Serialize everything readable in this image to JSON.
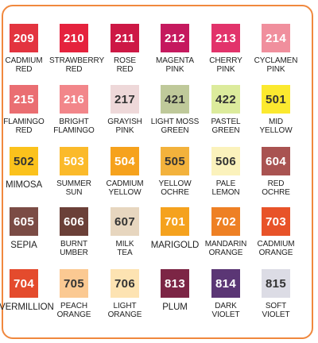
{
  "rows": [
    [
      {
        "code": "209",
        "name": "CADMIUM\nRED",
        "color": "#e3343f",
        "text": "#ffffff"
      },
      {
        "code": "210",
        "name": "STRAWBERRY\nRED",
        "color": "#e5223d",
        "text": "#ffffff"
      },
      {
        "code": "211",
        "name": "ROSE\nRED",
        "color": "#cd1845",
        "text": "#ffffff"
      },
      {
        "code": "212",
        "name": "MAGENTA\nPINK",
        "color": "#c5195e",
        "text": "#ffffff"
      },
      {
        "code": "213",
        "name": "CHERRY\nPINK",
        "color": "#e2336b",
        "text": "#ffffff"
      },
      {
        "code": "214",
        "name": "CYCLAMEN\nPINK",
        "color": "#f08f9d",
        "text": "#ffffff"
      }
    ],
    [
      {
        "code": "215",
        "name": "FLAMINGO\nRED",
        "color": "#ea6e72",
        "text": "#ffffff"
      },
      {
        "code": "216",
        "name": "BRIGHT\nFLAMINGO",
        "color": "#f2868a",
        "text": "#ffffff"
      },
      {
        "code": "217",
        "name": "GRAYISH\nPINK",
        "color": "#eed8d9",
        "text": "#333333"
      },
      {
        "code": "421",
        "name": "LIGHT MOSS\nGREEN",
        "color": "#bfc99a",
        "text": "#333333"
      },
      {
        "code": "422",
        "name": "PASTEL\nGREEN",
        "color": "#dceb9c",
        "text": "#333333"
      },
      {
        "code": "501",
        "name": "MID\nYELLOW",
        "color": "#fbe92f",
        "text": "#333333"
      }
    ],
    [
      {
        "code": "502",
        "name": "MIMOSA",
        "color": "#fbc21c",
        "text": "#333333"
      },
      {
        "code": "503",
        "name": "SUMMER\nSUN",
        "color": "#fbba2a",
        "text": "#ffffff"
      },
      {
        "code": "504",
        "name": "CADMIUM\nYELLOW",
        "color": "#f6a21d",
        "text": "#ffffff"
      },
      {
        "code": "505",
        "name": "YELLOW\nOCHRE",
        "color": "#f3b23c",
        "text": "#333333"
      },
      {
        "code": "506",
        "name": "PALE\nLEMON",
        "color": "#fbf2bc",
        "text": "#333333"
      },
      {
        "code": "604",
        "name": "RED\nOCHRE",
        "color": "#a95351",
        "text": "#ffffff"
      }
    ],
    [
      {
        "code": "605",
        "name": "SEPIA",
        "color": "#7b4c45",
        "text": "#ffffff"
      },
      {
        "code": "606",
        "name": "BURNT\nUMBER",
        "color": "#6b4038",
        "text": "#ffffff"
      },
      {
        "code": "607",
        "name": "MILK\nTEA",
        "color": "#e7d6bf",
        "text": "#333333"
      },
      {
        "code": "701",
        "name": "MARIGOLD",
        "color": "#f5a21e",
        "text": "#ffffff"
      },
      {
        "code": "702",
        "name": "MANDARIN\nORANGE",
        "color": "#ee8024",
        "text": "#ffffff"
      },
      {
        "code": "703",
        "name": "CADMIUM\nORANGE",
        "color": "#e85329",
        "text": "#ffffff"
      }
    ],
    [
      {
        "code": "704",
        "name": "VERMILLION",
        "color": "#e44b2d",
        "text": "#ffffff"
      },
      {
        "code": "705",
        "name": "PEACH\nORANGE",
        "color": "#fbc992",
        "text": "#333333"
      },
      {
        "code": "706",
        "name": "LIGHT\nORANGE",
        "color": "#fde3b2",
        "text": "#333333"
      },
      {
        "code": "813",
        "name": "PLUM",
        "color": "#7c2545",
        "text": "#ffffff"
      },
      {
        "code": "814",
        "name": "DARK\nVIOLET",
        "color": "#5b3675",
        "text": "#ffffff"
      },
      {
        "code": "815",
        "name": "SOFT\nVIOLET",
        "color": "#dcdce5",
        "text": "#333333"
      }
    ]
  ]
}
